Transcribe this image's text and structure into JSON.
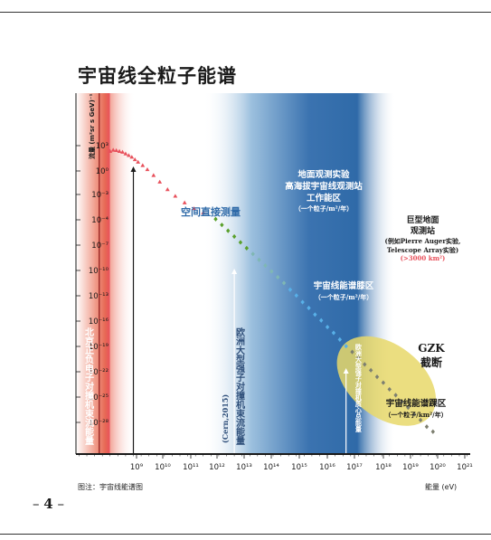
{
  "page": {
    "title": "宇宙线全粒子能谱",
    "caption": "图注：宇宙线能谱图",
    "page_number": "4"
  },
  "chart_data": {
    "type": "scatter",
    "xscale": "log",
    "yscale": "log",
    "xlabel": "能量 (eV)",
    "ylabel": "流量 (m²sr s GeV)⁻¹",
    "xlim_log10": [
      8.3,
      21
    ],
    "ylim_log10": [
      -30,
      6
    ],
    "x_ticks": [
      "10⁹",
      "10¹⁰",
      "10¹¹",
      "10¹²",
      "10¹³",
      "10¹⁴",
      "10¹⁵",
      "10¹⁶",
      "10¹⁷",
      "10¹⁸",
      "10¹⁹",
      "10²⁰",
      "10²¹"
    ],
    "y_ticks": [
      "10³",
      "10⁰",
      "10⁻³",
      "10⁻⁴",
      "10⁻⁷",
      "10⁻¹⁰",
      "10⁻¹³",
      "10⁻¹⁶",
      "10⁻¹⁹",
      "10⁻²²",
      "10⁻²⁵",
      "10⁻²⁸"
    ],
    "series": [
      {
        "segment": "red",
        "color": "#e8505b",
        "x_log10": [
          9.4,
          9.5,
          9.6,
          9.7,
          9.8,
          9.9,
          10.0,
          10.1,
          10.2,
          10.3,
          10.45,
          10.6,
          10.8,
          11.0,
          11.25,
          11.5,
          11.8,
          12.1,
          12.4
        ],
        "y_log10": [
          4.1,
          4.25,
          4.2,
          4.1,
          4.0,
          3.8,
          3.6,
          3.4,
          3.1,
          2.8,
          2.4,
          1.9,
          1.2,
          0.4,
          -0.5,
          -1.3,
          -2.1,
          -2.8,
          -3.3
        ]
      },
      {
        "segment": "green",
        "color": "#5aa02c",
        "x_log10": [
          12.8,
          13.0,
          13.2,
          13.4,
          13.6,
          13.8
        ],
        "y_log10": [
          -4.1,
          -4.8,
          -5.5,
          -6.2,
          -6.9,
          -7.6
        ]
      },
      {
        "segment": "teal",
        "color": "#7fb7b4",
        "x_log10": [
          14.0,
          14.2,
          14.4,
          14.6,
          14.8,
          15.0
        ],
        "y_log10": [
          -8.3,
          -9.0,
          -9.7,
          -10.4,
          -11.1,
          -11.8
        ]
      },
      {
        "segment": "blue",
        "color": "#58b0e8",
        "x_log10": [
          15.2,
          15.4,
          15.6,
          15.8,
          16.0,
          16.2,
          16.4,
          16.6,
          16.8,
          17.0
        ],
        "y_log10": [
          -12.6,
          -13.3,
          -14.1,
          -14.8,
          -15.6,
          -16.3,
          -17.1,
          -17.8,
          -18.6,
          -19.4
        ]
      },
      {
        "segment": "grey",
        "color": "#7d7f70",
        "x_log10": [
          17.2,
          17.4,
          17.6,
          17.8,
          18.0,
          18.2,
          18.4,
          18.6,
          18.8,
          19.0,
          19.2,
          19.4,
          19.6,
          19.8
        ],
        "y_log10": [
          -20.1,
          -20.8,
          -21.6,
          -22.3,
          -23.1,
          -23.8,
          -24.6,
          -25.3,
          -26.1,
          -26.8,
          -27.6,
          -28.3,
          -29.1,
          -29.7
        ]
      }
    ],
    "annotations": {
      "space": "空间直接测量",
      "ground1": "地面观测实验",
      "ground2": "高海拔宇宙线观测站",
      "ground3": "工作能区",
      "ground_rate": "（一个粒子/m²/年）",
      "knee1": "宇宙线能谱膝区",
      "knee_rate": "（一个粒子/m²/年）",
      "ankle1": "宇宙线能谱踝区",
      "ankle_rate": "（一个粒子/km²/年）",
      "giant1": "巨型地面",
      "giant2": "观测站",
      "giant3": "(例如Pierre Auger实验,",
      "giant4": "Telescope Array实验)",
      "giant_area": "(>3000 km²)",
      "gzk1": "GZK",
      "gzk2": "截断",
      "beijing": "北京正负电子对撞机束流能量",
      "cern": "欧洲大型强子对撞机束流能量",
      "cern_year": "(Cern,2015)",
      "lhc_cm": "欧洲大型强子对撞机质心总能量"
    },
    "colors": {
      "red_band": "#e8505b",
      "blue_band": "#2f6aa8",
      "ellipse": "#e8d86a",
      "axis": "#1a1a1a"
    }
  }
}
